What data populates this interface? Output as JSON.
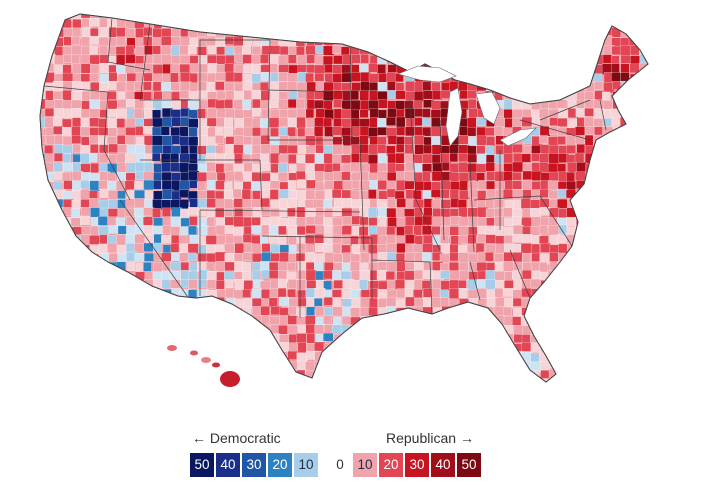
{
  "map": {
    "type": "choropleth",
    "region": "United States counties",
    "dem_color": "#2166ac",
    "rep_color": "#b2182b"
  },
  "legend": {
    "dem_heading": "← Democratic",
    "rep_heading": "Republican →",
    "zero_label": "0",
    "dem_steps": [
      {
        "label": "50",
        "color": "#0b1760"
      },
      {
        "label": "40",
        "color": "#1a2e8a"
      },
      {
        "label": "30",
        "color": "#1f56a6"
      },
      {
        "label": "20",
        "color": "#2d83c2"
      },
      {
        "label": "10",
        "color": "#a8cde9"
      }
    ],
    "rep_steps": [
      {
        "label": "10",
        "color": "#f0a3aa"
      },
      {
        "label": "20",
        "color": "#e24553"
      },
      {
        "label": "30",
        "color": "#c81321"
      },
      {
        "label": "40",
        "color": "#a10d19"
      },
      {
        "label": "50",
        "color": "#7d0a13"
      }
    ]
  }
}
